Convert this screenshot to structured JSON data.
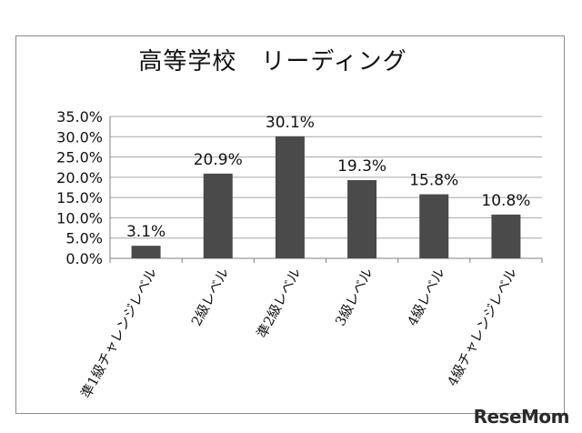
{
  "chart_data": {
    "type": "bar",
    "title": "高等学校　リーディング",
    "categories": [
      "準1級チャレンジレベル",
      "2級レベル",
      "準2級レベル",
      "3級レベル",
      "4級レベル",
      "4級チャレンジレベル"
    ],
    "values": [
      3.1,
      20.9,
      30.1,
      19.3,
      15.8,
      10.8
    ],
    "value_labels": [
      "3.1%",
      "20.9%",
      "30.1%",
      "19.3%",
      "15.8%",
      "10.8%"
    ],
    "y_ticks": [
      "0.0%",
      "5.0%",
      "10.0%",
      "15.0%",
      "20.0%",
      "25.0%",
      "30.0%",
      "35.0%"
    ],
    "ylim": [
      0,
      35
    ],
    "xlabel": "",
    "ylabel": "",
    "grid": true,
    "legend": "none",
    "bar_color": "#4a4a4a"
  },
  "watermark": "ReseMom"
}
